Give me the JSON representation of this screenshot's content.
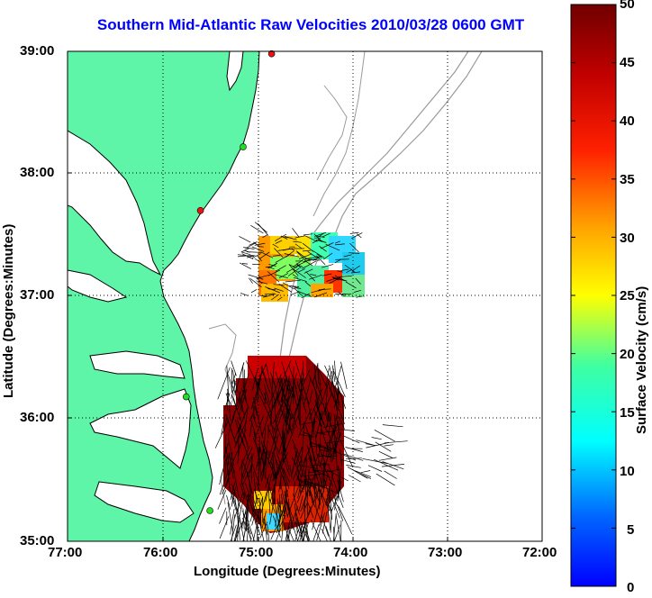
{
  "title": "Southern Mid-Atlantic Raw Velocities 2010/03/28 0600 GMT",
  "axes": {
    "xlabel": "Longitude (Degrees:Minutes)",
    "ylabel": "Latitude (Degrees:Minutes)",
    "xticks": [
      "77:00",
      "76:00",
      "75:00",
      "74:00",
      "73:00",
      "72:00"
    ],
    "yticks": [
      "39:00",
      "38:00",
      "37:00",
      "36:00",
      "35:00"
    ],
    "xlim_west_deg": [
      77,
      72
    ],
    "ylim_north_deg": [
      35,
      39
    ],
    "grid": "dotted"
  },
  "colorbar": {
    "label": "Surface Velocity (cm/s)",
    "ticks": [
      "50",
      "45",
      "40",
      "35",
      "30",
      "25",
      "20",
      "15",
      "10",
      "5",
      "0"
    ],
    "range": [
      0,
      50
    ],
    "colormap": "jet"
  },
  "colors": {
    "land": "#5ff5a8",
    "coastline": "#000000",
    "bathymetry": "#9a9a9a",
    "title": "#0000ff",
    "station_green": "#22dd22",
    "station_red": "#ee1111"
  },
  "chart_data": {
    "type": "vector-field-map",
    "stations": [
      {
        "lon": 74.85,
        "lat": 38.98,
        "color": "red"
      },
      {
        "lon": 75.15,
        "lat": 38.22,
        "color": "green"
      },
      {
        "lon": 75.6,
        "lat": 37.7,
        "color": "red"
      },
      {
        "lon": 75.75,
        "lat": 36.18,
        "color": "green"
      },
      {
        "lon": 75.5,
        "lat": 35.25,
        "color": "green"
      }
    ],
    "regions": [
      {
        "name": "northern-patch",
        "speed_cms": "5–45 mixed",
        "lon_range": [
          74.05,
          75.05
        ],
        "lat_range": [
          36.9,
          37.5
        ]
      },
      {
        "name": "southern-patch",
        "speed_cms": ">=50",
        "lon_range": [
          74.15,
          75.35
        ],
        "lat_range": [
          35.1,
          36.6
        ]
      }
    ]
  }
}
